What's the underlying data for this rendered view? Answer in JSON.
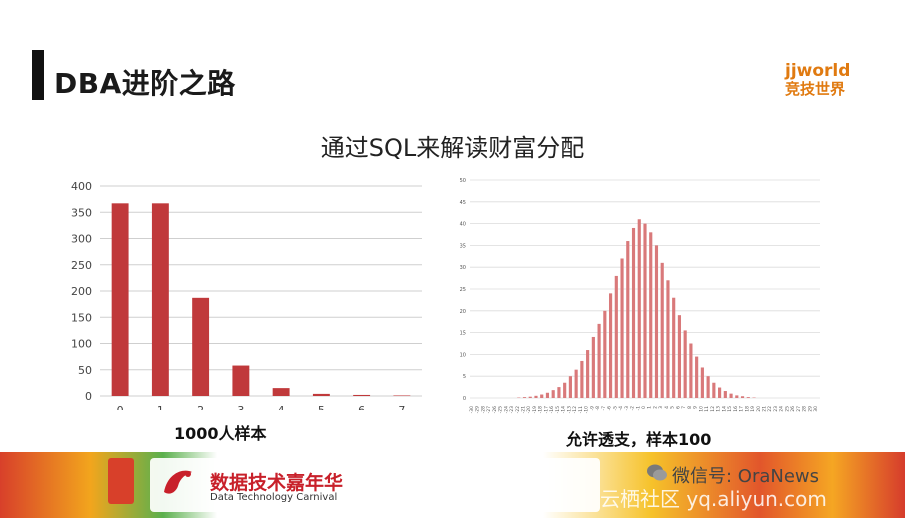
{
  "slide": {
    "title": "DBA进阶之路",
    "logo_top": "jjworld",
    "logo_bottom": "竞技世界",
    "subtitle": "通过SQL来解读财富分配"
  },
  "banner": {
    "event_title": "数据技术嘉年华",
    "event_subtitle": "Data Technology Carnival",
    "wechat": "微信号: OraNews",
    "watermark": "云栖社区 yq.aliyun.com"
  },
  "chart_data": [
    {
      "type": "bar",
      "caption": "1000人样本",
      "categories": [
        "0",
        "1",
        "2",
        "3",
        "4",
        "5",
        "6",
        "7"
      ],
      "values": [
        367,
        367,
        187,
        58,
        15,
        4,
        2,
        1
      ],
      "ylim": [
        0,
        400
      ],
      "yticks": [
        "0",
        "50",
        "100",
        "150",
        "200",
        "250",
        "300",
        "350",
        "400"
      ],
      "grid": true,
      "color": "#c0393b"
    },
    {
      "type": "bar",
      "caption": "允许透支，样本100",
      "x": [
        -30,
        -29,
        -28,
        -27,
        -26,
        -25,
        -24,
        -23,
        -22,
        -21,
        -20,
        -19,
        -18,
        -17,
        -16,
        -15,
        -14,
        -13,
        -12,
        -11,
        -10,
        -9,
        -8,
        -7,
        -6,
        -5,
        -4,
        -3,
        -2,
        -1,
        0,
        1,
        2,
        3,
        4,
        5,
        6,
        7,
        8,
        9,
        10,
        11,
        12,
        13,
        14,
        15,
        16,
        17,
        18,
        19,
        20,
        21,
        22,
        23,
        24,
        25,
        26,
        27,
        28,
        29,
        30
      ],
      "values": [
        0,
        0,
        0,
        0,
        0,
        0,
        0,
        0,
        0.1,
        0.2,
        0.3,
        0.5,
        0.8,
        1.2,
        1.8,
        2.5,
        3.5,
        5,
        6.5,
        8.5,
        11,
        14,
        17,
        20,
        24,
        28,
        32,
        36,
        39,
        41,
        40,
        38,
        35,
        31,
        27,
        23,
        19,
        15.5,
        12.5,
        9.5,
        7,
        5,
        3.5,
        2.4,
        1.6,
        1,
        0.6,
        0.4,
        0.2,
        0.1,
        0,
        0,
        0,
        0,
        0,
        0,
        0,
        0,
        0,
        0,
        0
      ],
      "ylim": [
        0,
        50
      ],
      "yticks": [
        "0",
        "5",
        "10",
        "15",
        "20",
        "25",
        "30",
        "35",
        "40",
        "45",
        "50"
      ],
      "grid": true,
      "color": "#d9797a"
    }
  ]
}
